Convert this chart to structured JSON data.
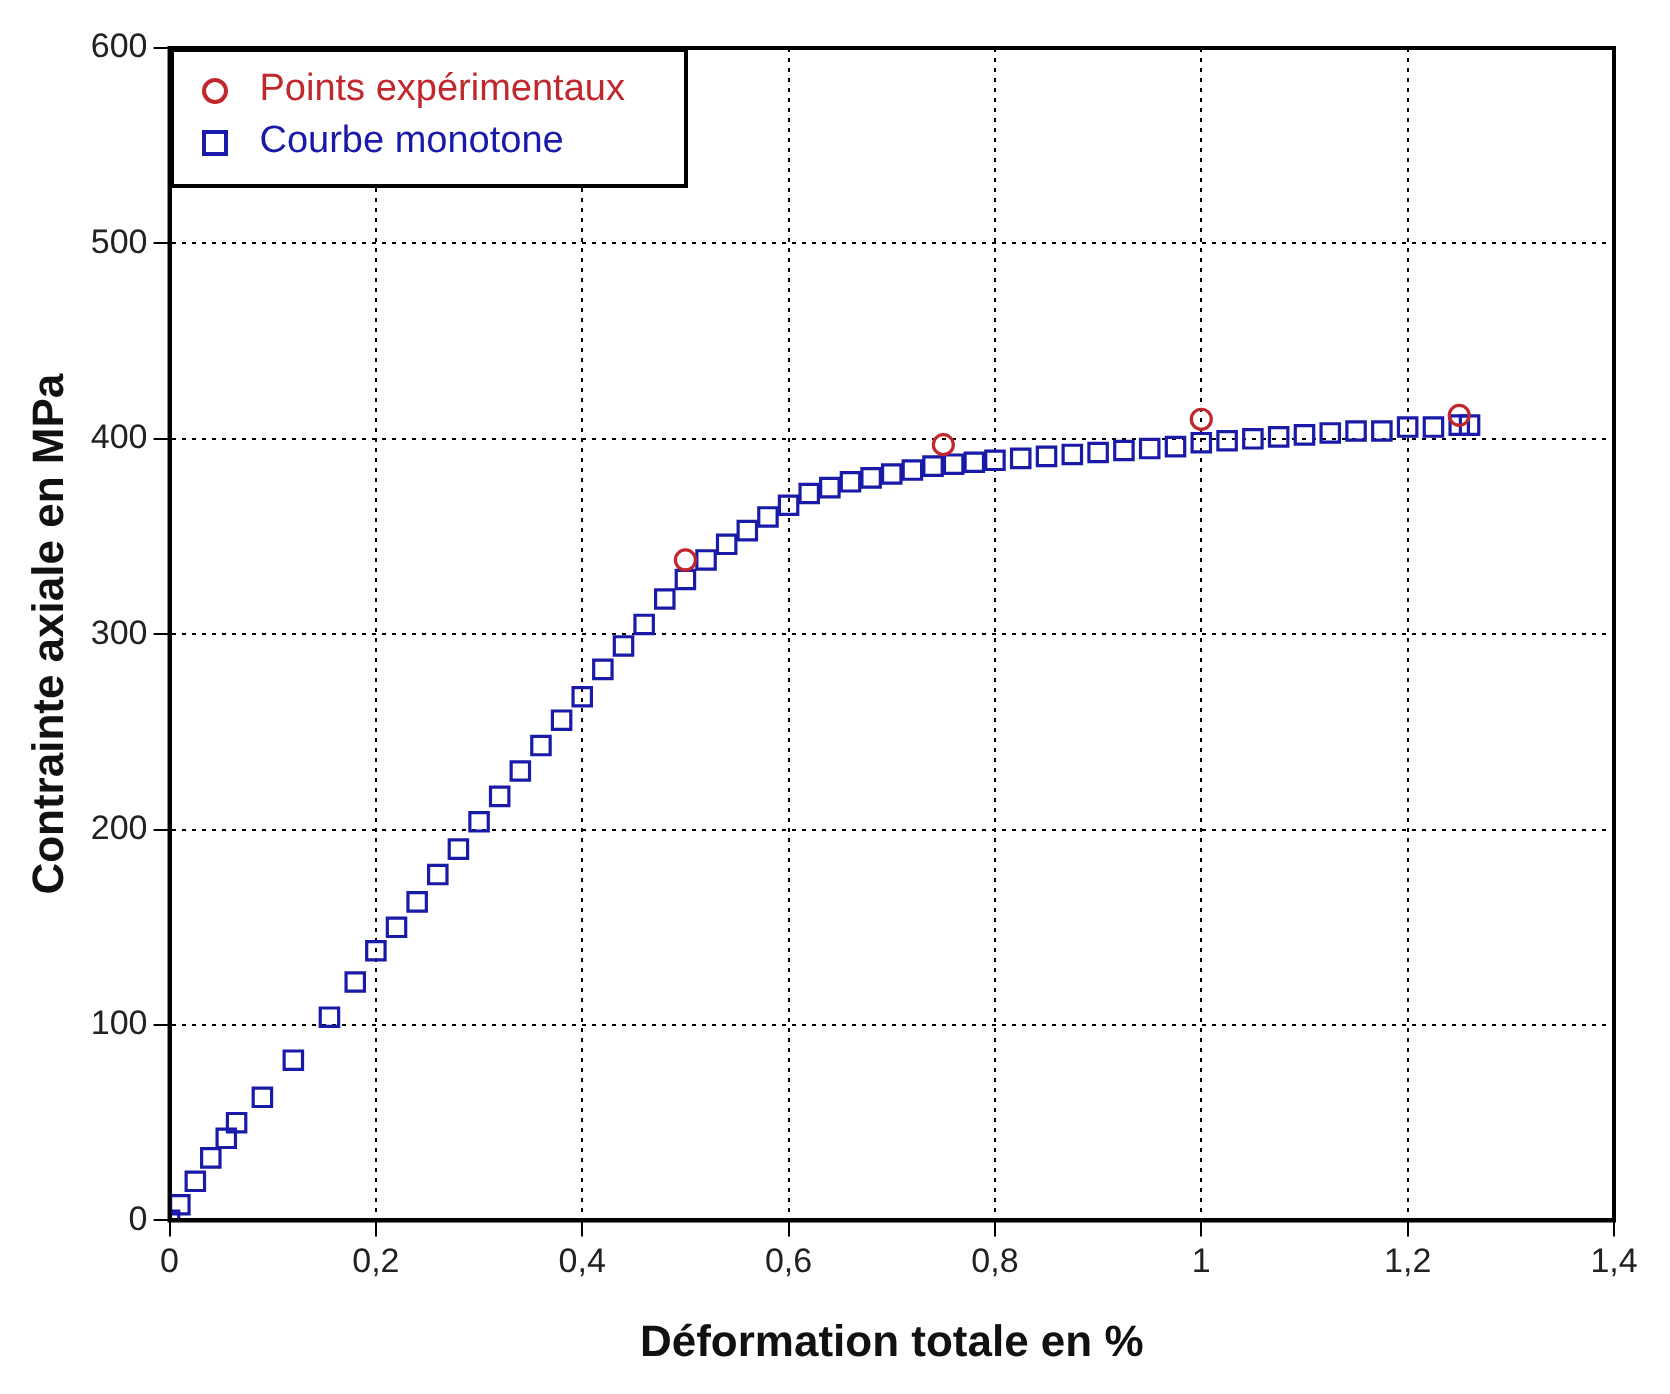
{
  "chart_data": {
    "type": "scatter",
    "xlabel": "Déformation totale en %",
    "ylabel": "Contrainte axiale en MPa",
    "xlim": [
      0,
      1.4
    ],
    "xticks": [
      {
        "value": 0,
        "label": "0"
      },
      {
        "value": 0.2,
        "label": "0,2"
      },
      {
        "value": 0.4,
        "label": "0,4"
      },
      {
        "value": 0.6,
        "label": "0,6"
      },
      {
        "value": 0.8,
        "label": "0,8"
      },
      {
        "value": 1,
        "label": "1"
      },
      {
        "value": 1.2,
        "label": "1,2"
      },
      {
        "value": 1.4,
        "label": "1,4"
      }
    ],
    "ylim": [
      0,
      600
    ],
    "yticks": [
      0,
      100,
      200,
      300,
      400,
      500,
      600
    ],
    "grid": true,
    "legend": "top left",
    "series": [
      {
        "name": "Points expérimentaux",
        "color": "#c0282d",
        "marker": "circle",
        "x": [
          0.5,
          0.75,
          1.0,
          1.25
        ],
        "values": [
          338,
          397,
          410,
          412
        ]
      },
      {
        "name": "Courbe monotone",
        "color": "#1a1aa8",
        "marker": "square",
        "x": [
          0,
          0.01,
          0.025,
          0.04,
          0.055,
          0.065,
          0.09,
          0.12,
          0.155,
          0.18,
          0.2,
          0.22,
          0.24,
          0.26,
          0.28,
          0.3,
          0.32,
          0.34,
          0.36,
          0.38,
          0.4,
          0.42,
          0.44,
          0.46,
          0.48,
          0.5,
          0.52,
          0.54,
          0.56,
          0.58,
          0.6,
          0.62,
          0.64,
          0.66,
          0.68,
          0.7,
          0.72,
          0.74,
          0.76,
          0.78,
          0.8,
          0.825,
          0.85,
          0.875,
          0.9,
          0.925,
          0.95,
          0.975,
          1.0,
          1.025,
          1.05,
          1.075,
          1.1,
          1.125,
          1.15,
          1.175,
          1.2,
          1.225,
          1.25,
          1.26
        ],
        "values": [
          0,
          8,
          20,
          32,
          42,
          50,
          63,
          82,
          104,
          122,
          138,
          150,
          163,
          177,
          190,
          204,
          217,
          230,
          243,
          256,
          268,
          282,
          294,
          305,
          318,
          328,
          338,
          346,
          353,
          360,
          366,
          372,
          375,
          378,
          380,
          382,
          384,
          386,
          387,
          388,
          389,
          390,
          391,
          392,
          393,
          394,
          395,
          396,
          398,
          399,
          400,
          401,
          402,
          403,
          404,
          404,
          406,
          406,
          407,
          407
        ]
      }
    ]
  }
}
